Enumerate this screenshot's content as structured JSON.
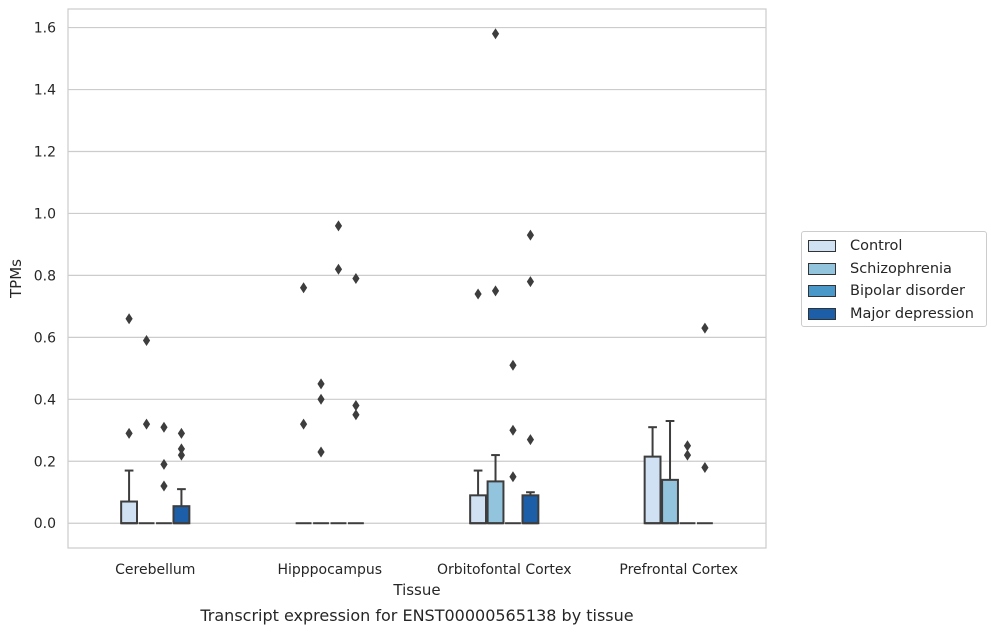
{
  "chart_data": {
    "type": "box",
    "xlabel": "Tissue",
    "ylabel": "TPMs",
    "ylim": [
      -0.08,
      1.66
    ],
    "yticks": [
      "0.0",
      "0.2",
      "0.4",
      "0.6",
      "0.8",
      "1.0",
      "1.2",
      "1.4",
      "1.6"
    ],
    "grid": true,
    "legend_position": "right",
    "categories": [
      "Cerebellum",
      "Hipppocampus",
      "Orbitofontal Cortex",
      "Prefrontal Cortex"
    ],
    "series": [
      {
        "name": "Control",
        "color": "#cfe1f2",
        "boxes": [
          {
            "q1": 0.0,
            "median": 0.0,
            "q3": 0.07,
            "whislo": 0.0,
            "whishi": 0.17,
            "fliers": [
              0.66,
              0.29
            ]
          },
          {
            "q1": 0.0,
            "median": 0.0,
            "q3": 0.0,
            "whislo": 0.0,
            "whishi": 0.0,
            "fliers": [
              0.76,
              0.32
            ]
          },
          {
            "q1": 0.0,
            "median": 0.0,
            "q3": 0.09,
            "whislo": 0.0,
            "whishi": 0.17,
            "fliers": [
              0.74
            ]
          },
          {
            "q1": 0.0,
            "median": 0.0,
            "q3": 0.215,
            "whislo": 0.0,
            "whishi": 0.31,
            "fliers": []
          }
        ]
      },
      {
        "name": "Schizophrenia",
        "color": "#93c4de",
        "boxes": [
          {
            "q1": 0.0,
            "median": 0.0,
            "q3": 0.0,
            "whislo": 0.0,
            "whishi": 0.0,
            "fliers": [
              0.59,
              0.32
            ]
          },
          {
            "q1": 0.0,
            "median": 0.0,
            "q3": 0.0,
            "whislo": 0.0,
            "whishi": 0.0,
            "fliers": [
              0.45,
              0.4,
              0.23
            ]
          },
          {
            "q1": 0.0,
            "median": 0.0,
            "q3": 0.135,
            "whislo": 0.0,
            "whishi": 0.22,
            "fliers": [
              1.58,
              0.75
            ]
          },
          {
            "q1": 0.0,
            "median": 0.0,
            "q3": 0.14,
            "whislo": 0.0,
            "whishi": 0.33,
            "fliers": []
          }
        ]
      },
      {
        "name": "Bipolar disorder",
        "color": "#4a98c9",
        "boxes": [
          {
            "q1": 0.0,
            "median": 0.0,
            "q3": 0.0,
            "whislo": 0.0,
            "whishi": 0.0,
            "fliers": [
              0.31,
              0.19,
              0.12
            ]
          },
          {
            "q1": 0.0,
            "median": 0.0,
            "q3": 0.0,
            "whislo": 0.0,
            "whishi": 0.0,
            "fliers": [
              0.96,
              0.82
            ]
          },
          {
            "q1": 0.0,
            "median": 0.0,
            "q3": 0.0,
            "whislo": 0.0,
            "whishi": 0.0,
            "fliers": [
              0.51,
              0.3,
              0.15
            ]
          },
          {
            "q1": 0.0,
            "median": 0.0,
            "q3": 0.0,
            "whislo": 0.0,
            "whishi": 0.0,
            "fliers": [
              0.25,
              0.22
            ]
          }
        ]
      },
      {
        "name": "Major depression",
        "color": "#1c5fa8",
        "boxes": [
          {
            "q1": 0.0,
            "median": 0.0,
            "q3": 0.055,
            "whislo": 0.0,
            "whishi": 0.11,
            "fliers": [
              0.29,
              0.24,
              0.22
            ]
          },
          {
            "q1": 0.0,
            "median": 0.0,
            "q3": 0.0,
            "whislo": 0.0,
            "whishi": 0.0,
            "fliers": [
              0.79,
              0.38,
              0.35
            ]
          },
          {
            "q1": 0.0,
            "median": 0.0,
            "q3": 0.09,
            "whislo": 0.0,
            "whishi": 0.1,
            "fliers": [
              0.93,
              0.78,
              0.27
            ]
          },
          {
            "q1": 0.0,
            "median": 0.0,
            "q3": 0.0,
            "whislo": 0.0,
            "whishi": 0.0,
            "fliers": [
              0.63,
              0.18
            ]
          }
        ]
      }
    ]
  },
  "caption": "Transcript expression for ENST00000565138 by tissue"
}
